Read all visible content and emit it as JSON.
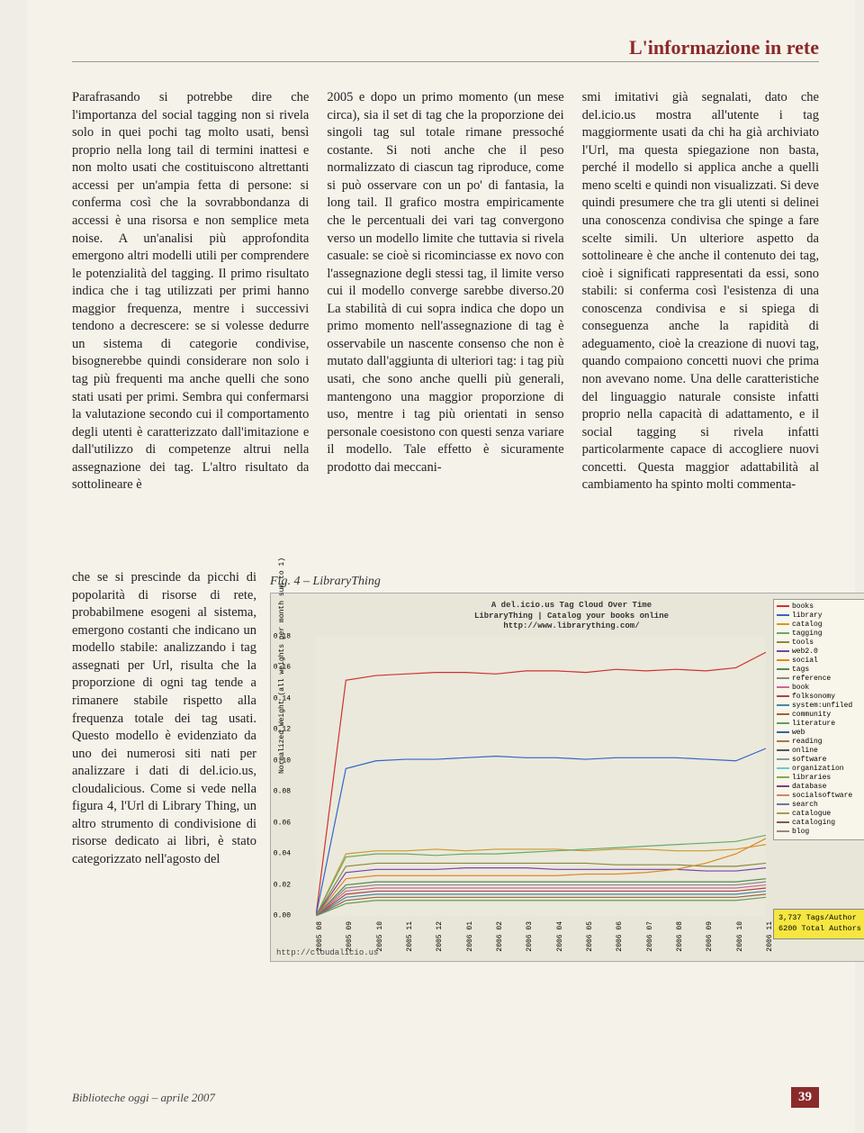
{
  "header": {
    "section_title": "L'informazione in rete"
  },
  "body": {
    "col1_upper": "Parafrasando si potrebbe dire che l'importanza del social tagging non si rivela solo in quei pochi tag molto usati, bensì proprio nella long tail di termini inattesi e non molto usati che costituiscono altrettanti accessi per un'ampia fetta di persone: si conferma così che la sovrabbondanza di accessi è una risorsa e non semplice meta noise. A un'analisi più approfondita emergono altri modelli utili per comprendere le potenzialità del tagging. Il primo risultato indica che i tag utilizzati per primi hanno maggior frequenza, mentre i successivi tendono a decrescere: se si volesse dedurre un sistema di categorie condivise, bisognerebbe quindi considerare non solo i tag più frequenti ma anche quelli che sono stati usati per primi. Sembra qui confermarsi la valutazione secondo cui il comportamento degli utenti è caratterizzato dall'imitazione e dall'utilizzo di competenze altrui nella assegnazione dei tag. L'altro risultato da sottolineare è",
    "col1_lower": "che se si prescinde da picchi di popolarità di risorse di rete, probabilmene esogeni al sistema, emergono costanti che indicano un modello stabile: analizzando i tag assegnati per Url, risulta che la proporzione di ogni tag tende a rimanere stabile rispetto alla frequenza totale dei tag usati. Questo modello è evidenziato da uno dei numerosi siti nati per analizzare i dati di del.icio.us, cloudalicious. Come si vede nella figura 4, l'Url di Library Thing, un altro strumento di condivisione di risorse dedicato ai libri, è stato categorizzato nell'agosto del",
    "col2": "2005 e dopo un primo momento (un mese circa), sia il set di tag che la proporzione dei singoli tag sul totale rimane pressoché costante. Si noti anche che il peso normalizzato di ciascun tag riproduce, come si può osservare con un po' di fantasia, la long tail. Il grafico mostra empiricamente che le percentuali dei vari tag convergono verso un modello limite che tuttavia si rivela casuale: se cioè si ricominciasse ex novo con l'assegnazione degli stessi tag, il limite verso cui il modello converge sarebbe diverso.20 La stabilità di cui sopra indica che dopo un primo momento nell'assegnazione di tag è osservabile un nascente consenso che non è mutato dall'aggiunta di ulteriori tag: i tag più usati, che sono anche quelli più generali, mantengono una maggior proporzione di uso, mentre i tag più orientati in senso personale coesistono con questi senza variare il modello. Tale effetto è sicuramente prodotto dai meccani-",
    "col3": "smi imitativi già segnalati, dato che del.icio.us mostra all'utente i tag maggiormente usati da chi ha già archiviato l'Url, ma questa spiegazione non basta, perché il modello si applica anche a quelli meno scelti e quindi non visualizzati. Si deve quindi presumere che tra gli utenti si delinei una conoscenza condivisa che spinge a fare scelte simili. Un ulteriore aspetto da sottolineare è che anche il contenuto dei tag, cioè i significati rappresentati da essi, sono stabili: si conferma così l'esistenza di una conoscenza condivisa e si spiega di conseguenza anche la rapidità di adeguamento, cioè la creazione di nuovi tag, quando compaiono concetti nuovi che prima non avevano nome. Una delle caratteristiche del linguaggio naturale consiste infatti proprio nella capacità di adattamento, e il social tagging si rivela infatti particolarmente capace di accogliere nuovi concetti. Questa maggior adattabilità al cambiamento ha spinto molti commenta-"
  },
  "figure": {
    "caption": "Fig. 4 – LibraryThing",
    "title_line1": "A del.icio.us Tag Cloud Over Time",
    "title_line2": "LibraryThing | Catalog your books online",
    "title_line3": "http://www.librarything.com/",
    "y_label": "Normalized Weight (all weights per month sum to 1)",
    "y_ticks": [
      "0.00",
      "0.02",
      "0.04",
      "0.06",
      "0.08",
      "0.10",
      "0.12",
      "0.14",
      "0.16",
      "0.18"
    ],
    "ylim": [
      0,
      0.18
    ],
    "x_ticks": [
      "2005 08",
      "2005 09",
      "2005 10",
      "2005 11",
      "2005 12",
      "2006 01",
      "2006 02",
      "2006 03",
      "2006 04",
      "2006 05",
      "2006 06",
      "2006 07",
      "2006 08",
      "2006 09",
      "2006 10",
      "2006 11"
    ],
    "legend": [
      {
        "label": "books",
        "color": "#cc3333"
      },
      {
        "label": "library",
        "color": "#3366cc"
      },
      {
        "label": "catalog",
        "color": "#cc9933"
      },
      {
        "label": "tagging",
        "color": "#66aa66"
      },
      {
        "label": "tools",
        "color": "#888844"
      },
      {
        "label": "web2.0",
        "color": "#7744aa"
      },
      {
        "label": "social",
        "color": "#dd8822"
      },
      {
        "label": "tags",
        "color": "#558855"
      },
      {
        "label": "reference",
        "color": "#888888"
      },
      {
        "label": "book",
        "color": "#cc6699"
      },
      {
        "label": "folksonomy",
        "color": "#aa4444"
      },
      {
        "label": "system:unfiled",
        "color": "#4488aa"
      },
      {
        "label": "community",
        "color": "#996633"
      },
      {
        "label": "literature",
        "color": "#669966"
      },
      {
        "label": "web",
        "color": "#336699"
      },
      {
        "label": "reading",
        "color": "#aa7744"
      },
      {
        "label": "online",
        "color": "#555555"
      },
      {
        "label": "software",
        "color": "#8899aa"
      },
      {
        "label": "organization",
        "color": "#66cccc"
      },
      {
        "label": "libraries",
        "color": "#88aa44"
      },
      {
        "label": "database",
        "color": "#774477"
      },
      {
        "label": "socialsoftware",
        "color": "#cc8866"
      },
      {
        "label": "search",
        "color": "#6677aa"
      },
      {
        "label": "catalogue",
        "color": "#aa9955"
      },
      {
        "label": "cataloging",
        "color": "#885555"
      },
      {
        "label": "blog",
        "color": "#998877"
      }
    ],
    "series": [
      {
        "color": "#cc3333",
        "y": [
          0.0,
          0.152,
          0.155,
          0.156,
          0.157,
          0.157,
          0.156,
          0.158,
          0.158,
          0.157,
          0.159,
          0.158,
          0.159,
          0.158,
          0.16,
          0.17
        ]
      },
      {
        "color": "#3366cc",
        "y": [
          0.0,
          0.095,
          0.1,
          0.101,
          0.101,
          0.102,
          0.103,
          0.102,
          0.102,
          0.101,
          0.102,
          0.102,
          0.102,
          0.101,
          0.1,
          0.108
        ]
      },
      {
        "color": "#cc9933",
        "y": [
          0.0,
          0.04,
          0.042,
          0.042,
          0.043,
          0.042,
          0.043,
          0.043,
          0.043,
          0.042,
          0.043,
          0.043,
          0.042,
          0.042,
          0.043,
          0.046
        ]
      },
      {
        "color": "#66aa66",
        "y": [
          0.0,
          0.038,
          0.04,
          0.04,
          0.039,
          0.04,
          0.04,
          0.041,
          0.042,
          0.043,
          0.044,
          0.045,
          0.046,
          0.047,
          0.048,
          0.052
        ]
      },
      {
        "color": "#888844",
        "y": [
          0.0,
          0.032,
          0.034,
          0.034,
          0.034,
          0.034,
          0.034,
          0.034,
          0.034,
          0.034,
          0.033,
          0.033,
          0.033,
          0.032,
          0.032,
          0.034
        ]
      },
      {
        "color": "#7744aa",
        "y": [
          0.0,
          0.028,
          0.03,
          0.03,
          0.03,
          0.031,
          0.031,
          0.031,
          0.03,
          0.03,
          0.03,
          0.03,
          0.03,
          0.029,
          0.029,
          0.031
        ]
      },
      {
        "color": "#dd8822",
        "y": [
          0.0,
          0.024,
          0.026,
          0.026,
          0.026,
          0.026,
          0.026,
          0.026,
          0.026,
          0.027,
          0.027,
          0.028,
          0.03,
          0.034,
          0.04,
          0.05
        ]
      },
      {
        "color": "#558855",
        "y": [
          0.0,
          0.02,
          0.022,
          0.022,
          0.022,
          0.022,
          0.022,
          0.022,
          0.022,
          0.022,
          0.022,
          0.022,
          0.022,
          0.022,
          0.022,
          0.024
        ]
      },
      {
        "color": "#888888",
        "y": [
          0.0,
          0.018,
          0.02,
          0.02,
          0.02,
          0.02,
          0.02,
          0.02,
          0.02,
          0.02,
          0.02,
          0.02,
          0.02,
          0.02,
          0.02,
          0.022
        ]
      },
      {
        "color": "#cc6699",
        "y": [
          0.0,
          0.016,
          0.018,
          0.018,
          0.018,
          0.018,
          0.018,
          0.018,
          0.018,
          0.018,
          0.018,
          0.018,
          0.018,
          0.018,
          0.018,
          0.02
        ]
      },
      {
        "color": "#aa4444",
        "y": [
          0.0,
          0.014,
          0.016,
          0.016,
          0.016,
          0.016,
          0.016,
          0.016,
          0.016,
          0.016,
          0.016,
          0.016,
          0.016,
          0.016,
          0.016,
          0.018
        ]
      },
      {
        "color": "#4488aa",
        "y": [
          0.0,
          0.012,
          0.014,
          0.014,
          0.014,
          0.014,
          0.014,
          0.014,
          0.014,
          0.014,
          0.014,
          0.014,
          0.014,
          0.014,
          0.014,
          0.016
        ]
      },
      {
        "color": "#996633",
        "y": [
          0.0,
          0.01,
          0.012,
          0.012,
          0.012,
          0.012,
          0.012,
          0.012,
          0.012,
          0.012,
          0.012,
          0.012,
          0.012,
          0.012,
          0.012,
          0.014
        ]
      },
      {
        "color": "#669966",
        "y": [
          0.0,
          0.008,
          0.01,
          0.01,
          0.01,
          0.01,
          0.01,
          0.01,
          0.01,
          0.01,
          0.01,
          0.01,
          0.01,
          0.01,
          0.01,
          0.012
        ]
      }
    ],
    "stats_line1": "3,737 Tags/Author",
    "stats_line2": "6200 Total Authors",
    "footer_url": "http://cloudalicio.us",
    "background_color": "#e8e6d8",
    "plot_bg": "#ebe9db"
  },
  "footer": {
    "left": "Biblioteche oggi – aprile 2007",
    "page": "39"
  }
}
